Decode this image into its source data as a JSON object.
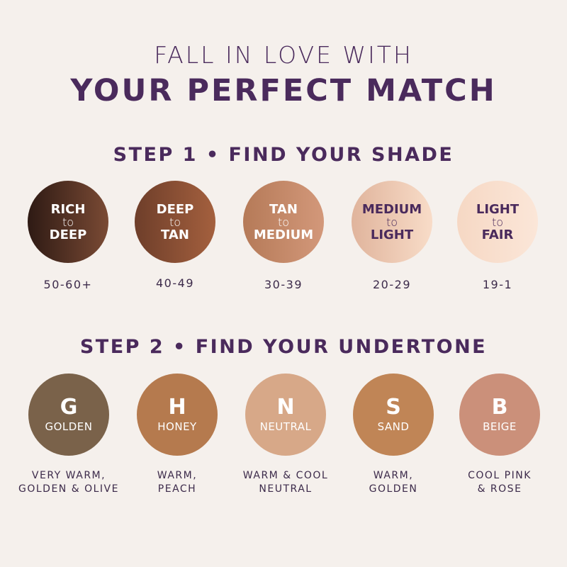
{
  "header": {
    "line1": "FALL IN LOVE WITH",
    "line2": "YOUR PERFECT MATCH"
  },
  "step1": {
    "title": "STEP 1 • FIND YOUR SHADE",
    "shades": [
      {
        "top": "RICH",
        "mid": "to",
        "bottom": "DEEP",
        "range": "50-60+",
        "color_from": "#2e1a14",
        "color_to": "#7a4a34",
        "text_color": "#ffffff"
      },
      {
        "top": "DEEP",
        "mid": "to",
        "bottom": "TAN",
        "range": "40-49",
        "color_from": "#6e3e2a",
        "color_to": "#a4603e",
        "text_color": "#ffffff"
      },
      {
        "top": "TAN",
        "mid": "to",
        "bottom": "MEDIUM",
        "range": "30-39",
        "color_from": "#b57a58",
        "color_to": "#d3987a",
        "text_color": "#ffffff"
      },
      {
        "top": "MEDIUM",
        "mid": "to",
        "bottom": "LIGHT",
        "range": "20-29",
        "color_from": "#e0b49c",
        "color_to": "#f8dcc8",
        "text_color": "#4a2a5c"
      },
      {
        "top": "LIGHT",
        "mid": "to",
        "bottom": "FAIR",
        "range": "19-1",
        "color_from": "#f6d8c4",
        "color_to": "#fbe6d8",
        "text_color": "#4a2a5c"
      }
    ]
  },
  "step2": {
    "title": "STEP 2 • FIND YOUR UNDERTONE",
    "undertones": [
      {
        "letter": "G",
        "name": "GOLDEN",
        "desc1": "VERY WARM,",
        "desc2": "GOLDEN & OLIVE",
        "color": "#7a624a"
      },
      {
        "letter": "H",
        "name": "HONEY",
        "desc1": "WARM,",
        "desc2": "PEACH",
        "color": "#b57a4e"
      },
      {
        "letter": "N",
        "name": "NEUTRAL",
        "desc1": "WARM & COOL",
        "desc2": "NEUTRAL",
        "color": "#d7a888"
      },
      {
        "letter": "S",
        "name": "SAND",
        "desc1": "WARM,",
        "desc2": "GOLDEN",
        "color": "#c08556"
      },
      {
        "letter": "B",
        "name": "BEIGE",
        "desc1": "COOL PINK",
        "desc2": "& ROSE",
        "color": "#cb907a"
      }
    ]
  },
  "colors": {
    "background": "#f5f0ec",
    "accent": "#4a2a5c"
  }
}
